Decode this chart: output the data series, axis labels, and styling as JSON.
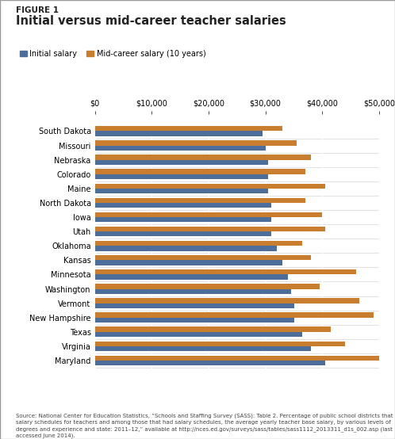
{
  "title_line1": "FIGURE 1",
  "title_line2": "Initial versus mid-career teacher salaries",
  "legend_initial": "Initial salary",
  "legend_midcareer": "Mid-career salary (10 years)",
  "states": [
    "South Dakota",
    "Missouri",
    "Nebraska",
    "Colorado",
    "Maine",
    "North Dakota",
    "Iowa",
    "Utah",
    "Oklahoma",
    "Kansas",
    "Minnesota",
    "Washington",
    "Vermont",
    "New Hampshire",
    "Texas",
    "Virginia",
    "Maryland"
  ],
  "initial_salary": [
    29500,
    30000,
    30500,
    30500,
    30500,
    31000,
    31000,
    31000,
    32000,
    33000,
    34000,
    34500,
    35000,
    35000,
    36500,
    38000,
    40500
  ],
  "midcareer_salary": [
    33000,
    35500,
    38000,
    37000,
    40500,
    37000,
    40000,
    40500,
    36500,
    38000,
    46000,
    39500,
    46500,
    49000,
    41500,
    44000,
    52000
  ],
  "color_initial": "#4d6d9a",
  "color_midcareer": "#c97e2f",
  "xlim": [
    0,
    50000
  ],
  "xtick_values": [
    0,
    10000,
    20000,
    30000,
    40000,
    50000
  ],
  "xtick_labels": [
    "$0",
    "$10,000",
    "$20,000",
    "$30,000",
    "$40,000",
    "$50,000"
  ],
  "background_color": "#ffffff",
  "border_color": "#aaaaaa",
  "source_text": "Source: National Center for Education Statistics, “Schools and Staffing Survey (SASS): Table 2. Percentage of public school districts that had\nsalary schedules for teachers and among those that had salary schedules, the average yearly teacher base salary, by various levels of\ndegrees and experience and state: 2011–12,” available at http://nces.ed.gov/surveys/sass/tables/sass1112_2013311_d1s_002.asp (last\naccessed June 2014)."
}
